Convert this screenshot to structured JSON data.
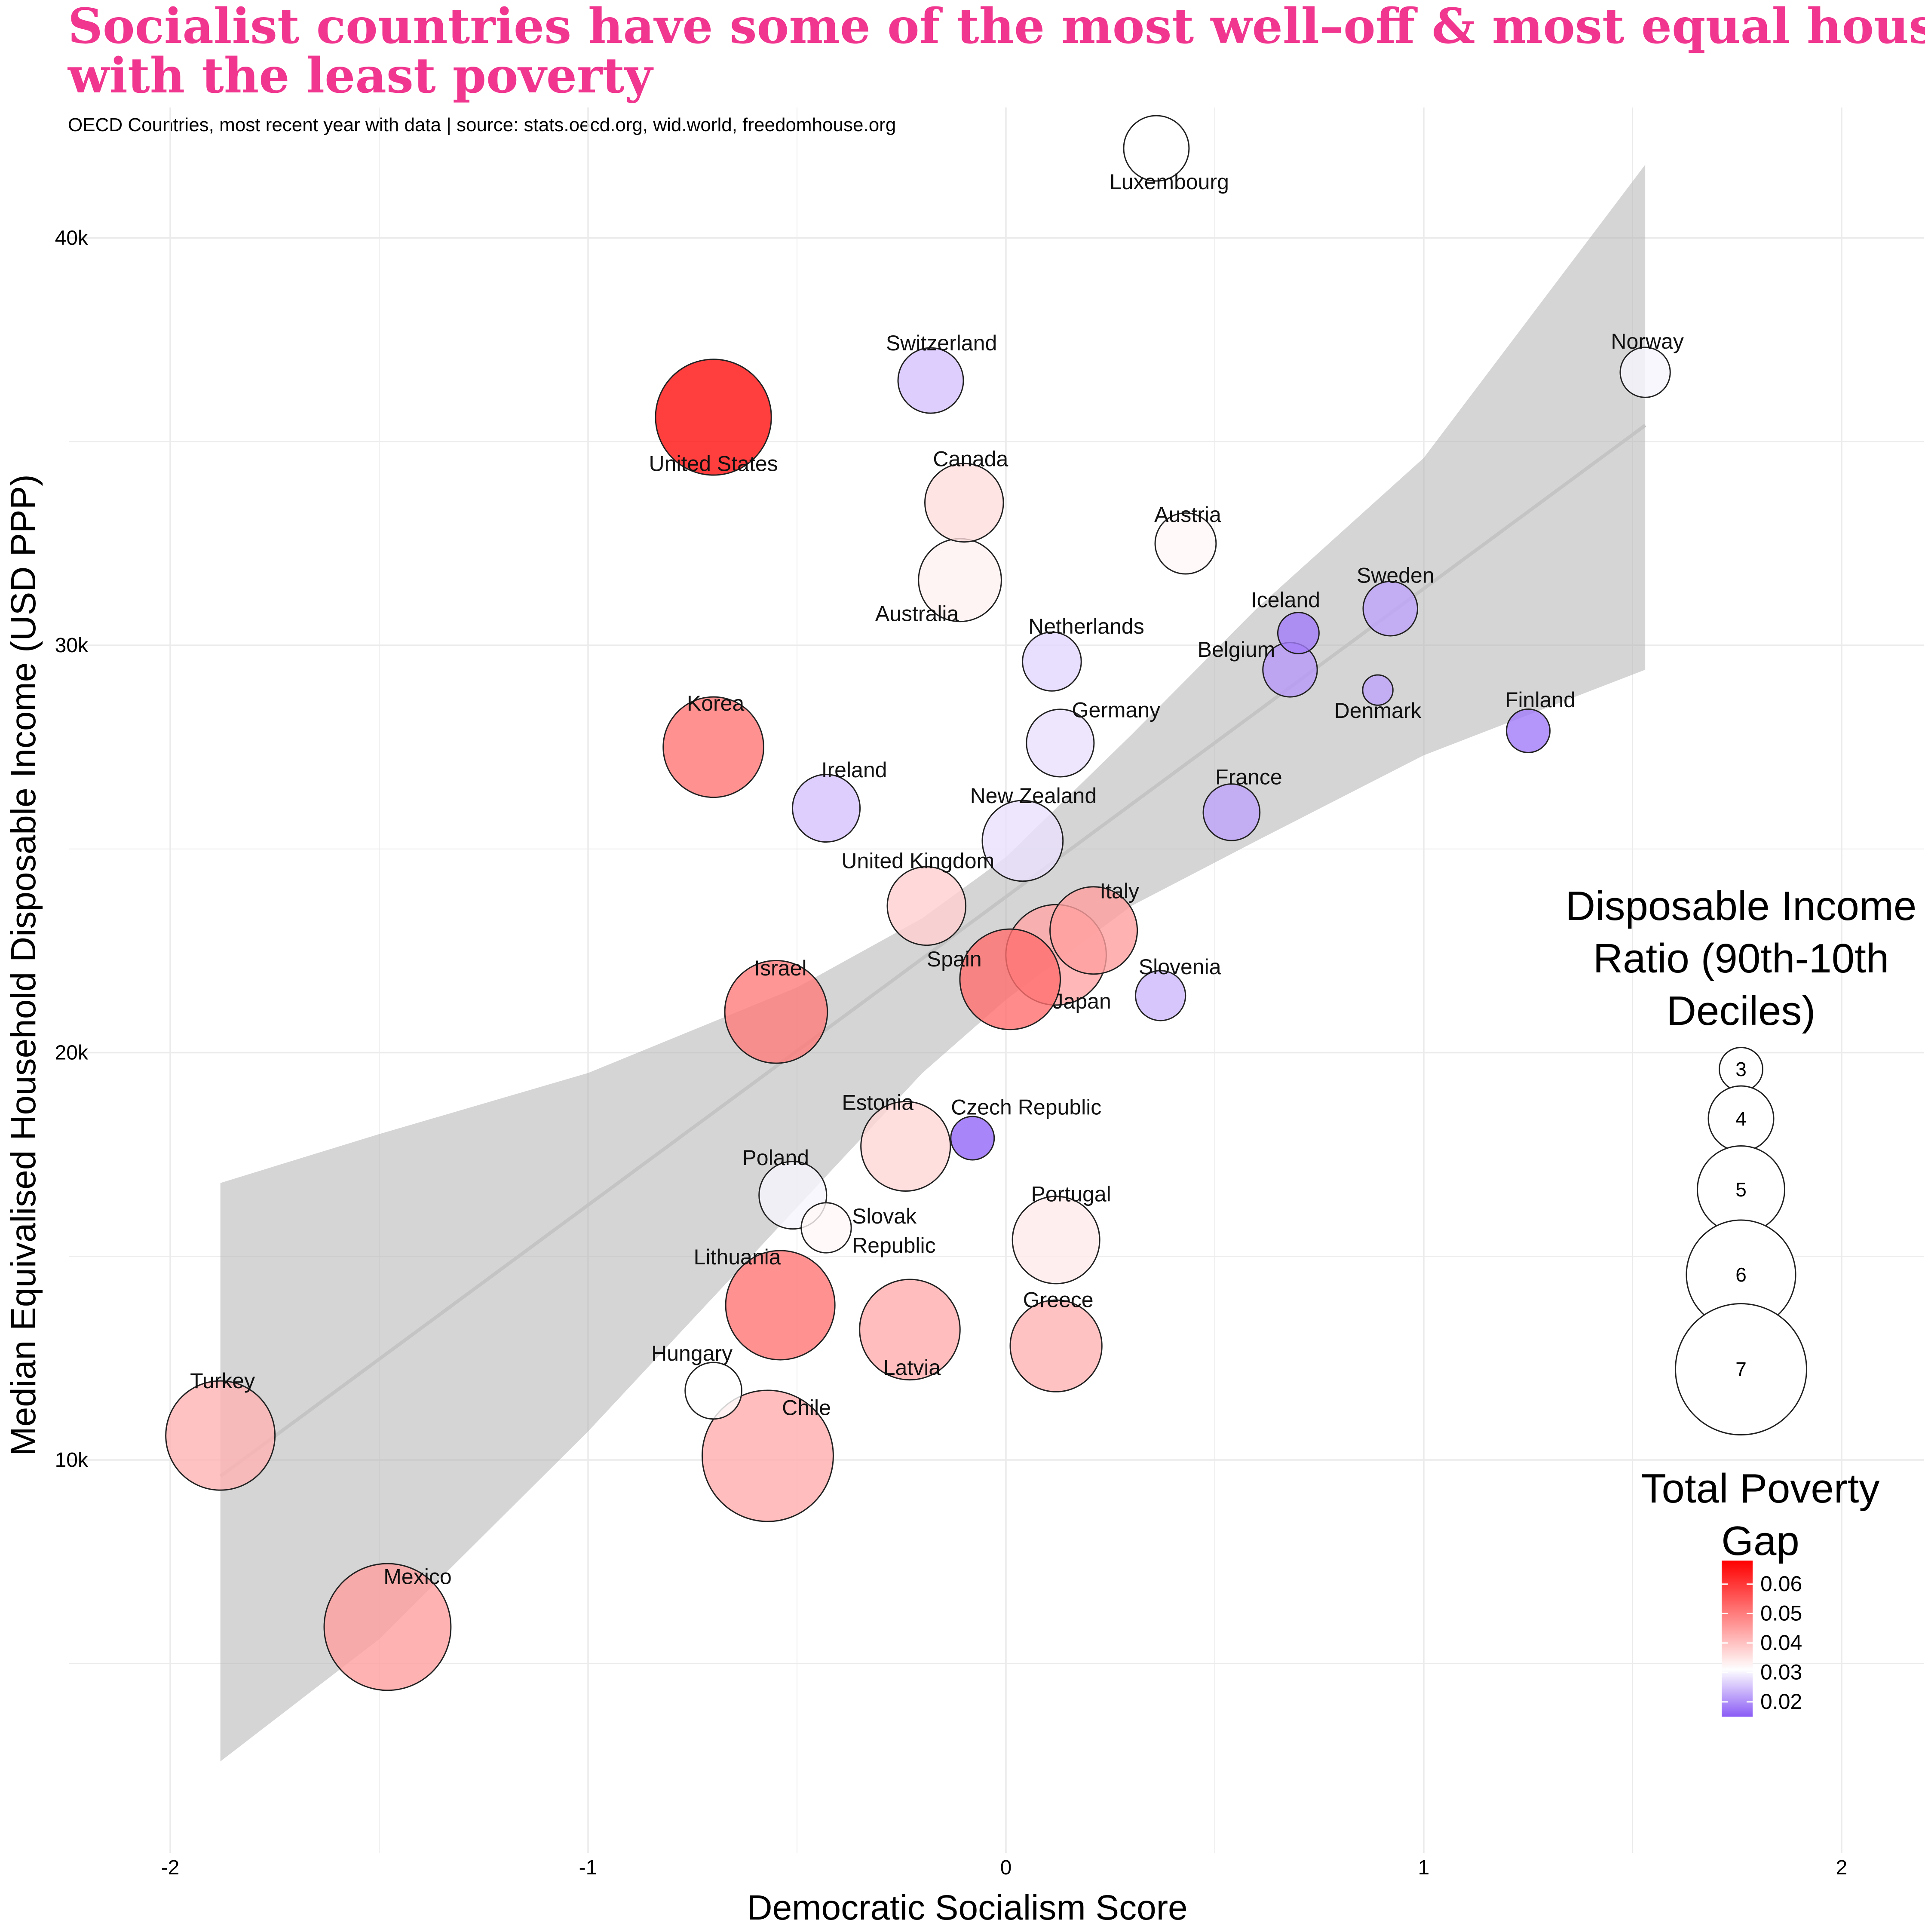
{
  "title_line1": "Socialist countries have some of the most well–off & most equal households,",
  "title_line2": "with the least poverty",
  "subtitle": "OECD Countries, most recent year with data | source: stats.oecd.org, wid.world, freedomhouse.org",
  "chart_data": {
    "type": "scatter",
    "xlabel": "Democratic Socialism Score",
    "ylabel": "Median Equivalised Household Disposable Income (USD PPP)",
    "x_ticks": [
      "-2",
      "-1",
      "0",
      "1",
      "2"
    ],
    "x_tick_values": [
      -2,
      -1,
      0,
      1,
      2
    ],
    "y_ticks": [
      "10k",
      "20k",
      "30k",
      "40k"
    ],
    "y_tick_values": [
      10000,
      20000,
      30000,
      40000
    ],
    "xlim": [
      -2.2,
      2.2
    ],
    "ylim": [
      2000,
      44000
    ],
    "grid": true,
    "trend": {
      "line": [
        [
          -1.88,
          9600
        ],
        [
          1.53,
          35400
        ]
      ],
      "band_upper": [
        [
          -1.88,
          16800
        ],
        [
          -1.5,
          18000
        ],
        [
          -1.0,
          19500
        ],
        [
          -0.5,
          21600
        ],
        [
          -0.2,
          23300
        ],
        [
          0.0,
          24800
        ],
        [
          0.3,
          27800
        ],
        [
          0.6,
          30900
        ],
        [
          1.0,
          34600
        ],
        [
          1.53,
          41800
        ]
      ],
      "band_lower": [
        [
          -1.88,
          2600
        ],
        [
          -1.5,
          5600
        ],
        [
          -1.0,
          10700
        ],
        [
          -0.5,
          16200
        ],
        [
          -0.2,
          19500
        ],
        [
          0.0,
          21300
        ],
        [
          0.3,
          23600
        ],
        [
          0.6,
          25200
        ],
        [
          1.0,
          27300
        ],
        [
          1.53,
          29400
        ]
      ]
    },
    "points": [
      {
        "country": "Luxembourg",
        "x": 0.36,
        "y": 42200,
        "ratio": 4.0,
        "gap": 0.031
      },
      {
        "country": "Norway",
        "x": 1.53,
        "y": 36700,
        "ratio": 3.3,
        "gap": 0.03
      },
      {
        "country": "Switzerland",
        "x": -0.18,
        "y": 36500,
        "ratio": 4.0,
        "gap": 0.025
      },
      {
        "country": "United States",
        "x": -0.7,
        "y": 35600,
        "ratio": 6.3,
        "gap": 0.066
      },
      {
        "country": "Canada",
        "x": -0.1,
        "y": 33500,
        "ratio": 4.6,
        "gap": 0.036
      },
      {
        "country": "Austria",
        "x": 0.43,
        "y": 32500,
        "ratio": 3.8,
        "gap": 0.032
      },
      {
        "country": "Australia",
        "x": -0.11,
        "y": 31600,
        "ratio": 4.8,
        "gap": 0.033
      },
      {
        "country": "Sweden",
        "x": 0.92,
        "y": 30900,
        "ratio": 3.5,
        "gap": 0.022
      },
      {
        "country": "Iceland",
        "x": 0.7,
        "y": 30300,
        "ratio": 2.9,
        "gap": 0.018
      },
      {
        "country": "Netherlands",
        "x": 0.11,
        "y": 29600,
        "ratio": 3.7,
        "gap": 0.027
      },
      {
        "country": "Belgium",
        "x": 0.68,
        "y": 29400,
        "ratio": 3.5,
        "gap": 0.021
      },
      {
        "country": "Denmark",
        "x": 0.89,
        "y": 28900,
        "ratio": 2.4,
        "gap": 0.022
      },
      {
        "country": "Finland",
        "x": 1.25,
        "y": 27900,
        "ratio": 3.0,
        "gap": 0.018
      },
      {
        "country": "Germany",
        "x": 0.13,
        "y": 27600,
        "ratio": 4.1,
        "gap": 0.028
      },
      {
        "country": "Korea",
        "x": -0.7,
        "y": 27500,
        "ratio": 5.6,
        "gap": 0.051
      },
      {
        "country": "Ireland",
        "x": -0.43,
        "y": 26000,
        "ratio": 4.1,
        "gap": 0.025
      },
      {
        "country": "France",
        "x": 0.54,
        "y": 25900,
        "ratio": 3.6,
        "gap": 0.022
      },
      {
        "country": "New Zealand",
        "x": 0.04,
        "y": 25200,
        "ratio": 4.7,
        "gap": 0.028
      },
      {
        "country": "United Kingdom",
        "x": -0.19,
        "y": 23600,
        "ratio": 4.6,
        "gap": 0.038
      },
      {
        "country": "Italy",
        "x": 0.21,
        "y": 23000,
        "ratio": 5.0,
        "gap": 0.045
      },
      {
        "country": "Japan",
        "x": 0.12,
        "y": 22400,
        "ratio": 5.6,
        "gap": 0.044
      },
      {
        "country": "Spain",
        "x": 0.01,
        "y": 21800,
        "ratio": 5.6,
        "gap": 0.052
      },
      {
        "country": "Slovenia",
        "x": 0.37,
        "y": 21400,
        "ratio": 3.3,
        "gap": 0.024
      },
      {
        "country": "Israel",
        "x": -0.55,
        "y": 21000,
        "ratio": 5.7,
        "gap": 0.05
      },
      {
        "country": "Czech Republic",
        "x": -0.08,
        "y": 17900,
        "ratio": 3.0,
        "gap": 0.016
      },
      {
        "country": "Estonia",
        "x": -0.24,
        "y": 17700,
        "ratio": 5.1,
        "gap": 0.037
      },
      {
        "country": "Poland",
        "x": -0.51,
        "y": 16500,
        "ratio": 4.1,
        "gap": 0.03
      },
      {
        "country": "Slovak Republic",
        "x": -0.43,
        "y": 15700,
        "ratio": 3.3,
        "gap": 0.032
      },
      {
        "country": "Portugal",
        "x": 0.12,
        "y": 15400,
        "ratio": 5.0,
        "gap": 0.034
      },
      {
        "country": "Lithuania",
        "x": -0.54,
        "y": 13800,
        "ratio": 6.0,
        "gap": 0.051
      },
      {
        "country": "Latvia",
        "x": -0.23,
        "y": 13200,
        "ratio": 5.6,
        "gap": 0.043
      },
      {
        "country": "Greece",
        "x": 0.12,
        "y": 12800,
        "ratio": 5.2,
        "gap": 0.042
      },
      {
        "country": "Hungary",
        "x": -0.7,
        "y": 11700,
        "ratio": 3.6,
        "gap": 0.031
      },
      {
        "country": "Turkey",
        "x": -1.88,
        "y": 10600,
        "ratio": 6.0,
        "gap": 0.042
      },
      {
        "country": "Chile",
        "x": -0.57,
        "y": 10100,
        "ratio": 7.0,
        "gap": 0.043
      },
      {
        "country": "Mexico",
        "x": -1.48,
        "y": 5900,
        "ratio": 6.8,
        "gap": 0.045
      }
    ],
    "size_legend": {
      "title_lines": [
        "Disposable Income",
        "Ratio (90th-10th",
        "Deciles)"
      ],
      "values": [
        3,
        4,
        5,
        6,
        7
      ],
      "labels": [
        "3",
        "4",
        "5",
        "6",
        "7"
      ]
    },
    "color_legend": {
      "title_lines": [
        "Total Poverty",
        "Gap"
      ],
      "ticks": [
        0.06,
        0.05,
        0.04,
        0.03,
        0.02
      ],
      "labels": [
        "0.06",
        "0.05",
        "0.04",
        "0.03",
        "0.02"
      ],
      "range": [
        0.015,
        0.068
      ],
      "colors": {
        "low": "#8b5cf6",
        "mid": "#ffffff",
        "high": "#ff0000",
        "mid_value": 0.031
      }
    }
  }
}
